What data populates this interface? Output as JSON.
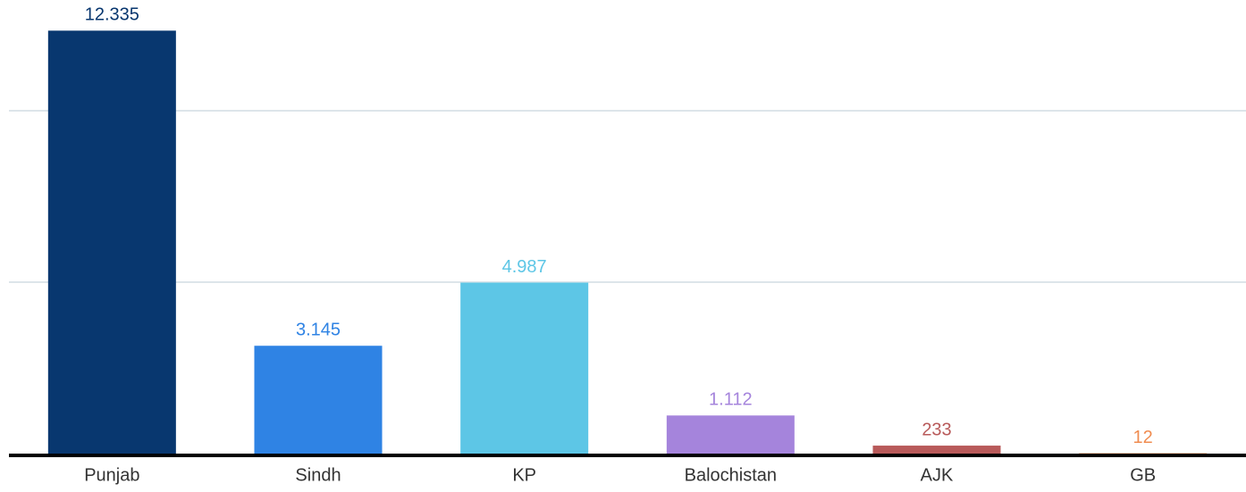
{
  "chart_data": {
    "type": "bar",
    "categories": [
      "Punjab",
      "Sindh",
      "KP",
      "Balochistan",
      "AJK",
      "GB"
    ],
    "values": [
      12335,
      3145,
      4987,
      1112,
      233,
      12
    ],
    "value_labels": [
      "12.335",
      "3.145",
      "4.987",
      "1.112",
      "233",
      "12"
    ],
    "colors": [
      "#08376f",
      "#2f83e4",
      "#5dc6e6",
      "#a584dc",
      "#b85a5a",
      "#f08c50"
    ],
    "ylim": [
      0,
      13000
    ],
    "yticks": [
      0,
      5000,
      10000
    ],
    "grid": true
  }
}
